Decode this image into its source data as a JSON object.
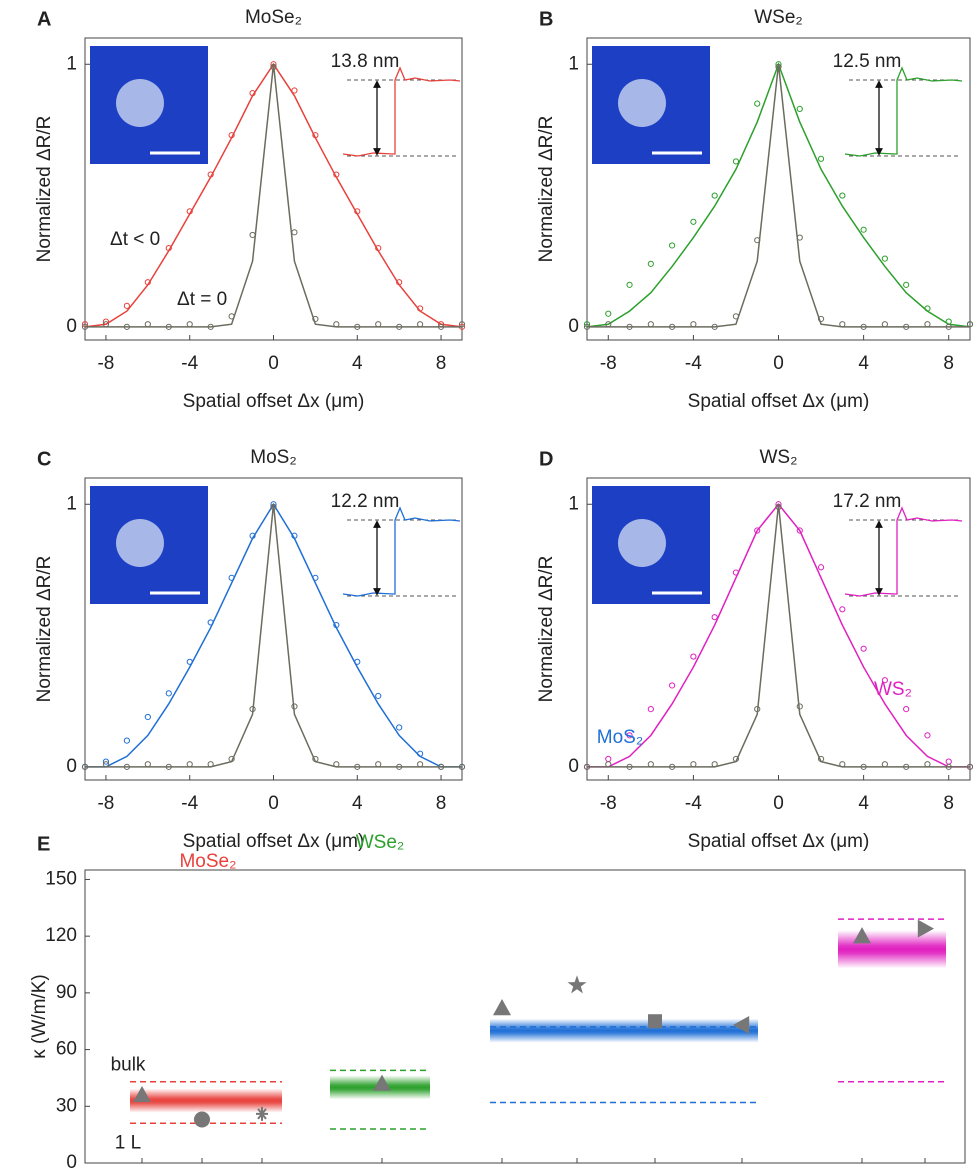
{
  "chart_data": [
    {
      "type": "profile",
      "panel": "A",
      "title": "MoSe₂",
      "xlabel": "Spatial offset Δx (μm)",
      "ylabel": "Normalized ΔR/R",
      "thickness": "13.8 nm",
      "annotations": [
        "Δt < 0",
        "Δt = 0"
      ],
      "xlim": [
        -9,
        9
      ],
      "ylim": [
        -0.05,
        1.1
      ],
      "xticks": [
        -8,
        -4,
        0,
        4,
        8
      ],
      "yticks": [
        0,
        1
      ],
      "x": [
        -9,
        -8,
        -7,
        -6,
        -5,
        -4,
        -3,
        -2,
        -1,
        0,
        1,
        2,
        3,
        4,
        5,
        6,
        7,
        8,
        9
      ],
      "series": [
        {
          "style": "markers",
          "color": "#e8413c",
          "values": [
            0.01,
            0.02,
            0.08,
            0.17,
            0.3,
            0.44,
            0.58,
            0.73,
            0.89,
            1,
            0.9,
            0.73,
            0.58,
            0.44,
            0.3,
            0.17,
            0.07,
            0.01,
            0
          ]
        },
        {
          "style": "line",
          "color": "#e8413c",
          "values": [
            0,
            0.01,
            0.06,
            0.16,
            0.29,
            0.43,
            0.57,
            0.72,
            0.88,
            1,
            0.88,
            0.72,
            0.57,
            0.43,
            0.29,
            0.16,
            0.06,
            0.01,
            0
          ]
        },
        {
          "style": "markers",
          "color": "#6b6b5e",
          "values": [
            0,
            0.01,
            0,
            0.01,
            0,
            0.01,
            0,
            0.04,
            0.35,
            0.99,
            0.36,
            0.03,
            0.01,
            0,
            0.01,
            0,
            0.01,
            0,
            0.01
          ]
        },
        {
          "style": "line",
          "color": "#6b6b5e",
          "values": [
            0,
            0,
            0,
            0,
            0,
            0,
            0,
            0.01,
            0.25,
            1,
            0.25,
            0.01,
            0,
            0,
            0,
            0,
            0,
            0,
            0
          ]
        }
      ]
    },
    {
      "type": "profile",
      "panel": "B",
      "title": "WSe₂",
      "xlabel": "Spatial offset Δx (μm)",
      "ylabel": "Normalized ΔR/R",
      "thickness": "12.5 nm",
      "xlim": [
        -9,
        9
      ],
      "ylim": [
        -0.05,
        1.1
      ],
      "xticks": [
        -8,
        -4,
        0,
        4,
        8
      ],
      "yticks": [
        0,
        1
      ],
      "x": [
        -9,
        -8,
        -7,
        -6,
        -5,
        -4,
        -3,
        -2,
        -1,
        0,
        1,
        2,
        3,
        4,
        5,
        6,
        7,
        8,
        9
      ],
      "series": [
        {
          "style": "markers",
          "color": "#2ca02c",
          "values": [
            0.01,
            0.05,
            0.16,
            0.24,
            0.31,
            0.4,
            0.5,
            0.63,
            0.85,
            1,
            0.83,
            0.64,
            0.5,
            0.37,
            0.26,
            0.16,
            0.07,
            0.02,
            0.01
          ]
        },
        {
          "style": "line",
          "color": "#2ca02c",
          "values": [
            0,
            0.01,
            0.06,
            0.13,
            0.23,
            0.34,
            0.46,
            0.6,
            0.78,
            1,
            0.78,
            0.6,
            0.46,
            0.34,
            0.23,
            0.13,
            0.06,
            0.01,
            0
          ]
        },
        {
          "style": "markers",
          "color": "#6b6b5e",
          "values": [
            0,
            0.01,
            0,
            0.01,
            0,
            0.01,
            0,
            0.04,
            0.33,
            0.99,
            0.34,
            0.03,
            0.01,
            0,
            0.01,
            0,
            0.01,
            0,
            0.01
          ]
        },
        {
          "style": "line",
          "color": "#6b6b5e",
          "values": [
            0,
            0,
            0,
            0,
            0,
            0,
            0,
            0.01,
            0.25,
            1,
            0.25,
            0.01,
            0,
            0,
            0,
            0,
            0,
            0,
            0
          ]
        }
      ]
    },
    {
      "type": "profile",
      "panel": "C",
      "title": "MoS₂",
      "xlabel": "Spatial offset Δx (μm)",
      "ylabel": "Normalized ΔR/R",
      "thickness": "12.2 nm",
      "xlim": [
        -9,
        9
      ],
      "ylim": [
        -0.05,
        1.1
      ],
      "xticks": [
        -8,
        -4,
        0,
        4,
        8
      ],
      "yticks": [
        0,
        1
      ],
      "x": [
        -9,
        -8,
        -7,
        -6,
        -5,
        -4,
        -3,
        -2,
        -1,
        0,
        1,
        2,
        3,
        4,
        5,
        6,
        7,
        8,
        9
      ],
      "series": [
        {
          "style": "markers",
          "color": "#1f6fd6",
          "values": [
            0,
            0.02,
            0.1,
            0.19,
            0.28,
            0.4,
            0.55,
            0.72,
            0.88,
            1,
            0.88,
            0.72,
            0.54,
            0.4,
            0.27,
            0.15,
            0.05,
            0,
            0
          ]
        },
        {
          "style": "line",
          "color": "#1f6fd6",
          "values": [
            0,
            0,
            0.04,
            0.12,
            0.24,
            0.38,
            0.53,
            0.7,
            0.87,
            1,
            0.87,
            0.7,
            0.53,
            0.38,
            0.24,
            0.12,
            0.04,
            0,
            0
          ]
        },
        {
          "style": "markers",
          "color": "#6b6b5e",
          "values": [
            0,
            0.01,
            0,
            0.01,
            0,
            0.01,
            0.01,
            0.03,
            0.22,
            0.99,
            0.23,
            0.03,
            0.01,
            0,
            0.01,
            0,
            0.01,
            0,
            0
          ]
        },
        {
          "style": "line",
          "color": "#6b6b5e",
          "values": [
            0,
            0,
            0,
            0,
            0,
            0,
            0,
            0.02,
            0.2,
            1,
            0.2,
            0.02,
            0,
            0,
            0,
            0,
            0,
            0,
            0
          ]
        }
      ]
    },
    {
      "type": "profile",
      "panel": "D",
      "title": "WS₂",
      "xlabel": "Spatial offset Δx (μm)",
      "ylabel": "Normalized ΔR/R",
      "thickness": "17.2 nm",
      "xlim": [
        -9,
        9
      ],
      "ylim": [
        -0.05,
        1.1
      ],
      "xticks": [
        -8,
        -4,
        0,
        4,
        8
      ],
      "yticks": [
        0,
        1
      ],
      "x": [
        -9,
        -8,
        -7,
        -6,
        -5,
        -4,
        -3,
        -2,
        -1,
        0,
        1,
        2,
        3,
        4,
        5,
        6,
        7,
        8,
        9
      ],
      "series": [
        {
          "style": "markers",
          "color": "#e020c0",
          "values": [
            0,
            0.03,
            0.12,
            0.22,
            0.31,
            0.42,
            0.57,
            0.74,
            0.9,
            1,
            0.9,
            0.76,
            0.6,
            0.45,
            0.33,
            0.22,
            0.12,
            0.02,
            0
          ]
        },
        {
          "style": "line",
          "color": "#e020c0",
          "values": [
            0,
            0,
            0.04,
            0.12,
            0.24,
            0.38,
            0.54,
            0.72,
            0.9,
            1,
            0.9,
            0.72,
            0.54,
            0.38,
            0.24,
            0.12,
            0.04,
            0,
            0
          ]
        },
        {
          "style": "markers",
          "color": "#6b6b5e",
          "values": [
            0,
            0.01,
            0,
            0.01,
            0,
            0.01,
            0.01,
            0.03,
            0.22,
            0.99,
            0.23,
            0.03,
            0.01,
            0,
            0.01,
            0,
            0.01,
            0,
            0
          ]
        },
        {
          "style": "line",
          "color": "#6b6b5e",
          "values": [
            0,
            0,
            0,
            0,
            0,
            0,
            0,
            0.02,
            0.2,
            1,
            0.2,
            0.02,
            0,
            0,
            0,
            0,
            0,
            0,
            0
          ]
        }
      ]
    },
    {
      "type": "range",
      "panel": "E",
      "ylabel": "κ (W/m/K)",
      "bulk_label": "bulk",
      "monolayer_label": "1 L",
      "ylim": [
        0,
        155
      ],
      "yticks": [
        0,
        30,
        60,
        90,
        120,
        150
      ],
      "groups": [
        {
          "name": "MoSe₂",
          "color": "#e8413c",
          "value": 33,
          "bulk": 43,
          "monolayer": 21,
          "points": [
            {
              "marker": "triangle",
              "value": 36
            },
            {
              "marker": "circle",
              "value": 23
            },
            {
              "marker": "asterisk",
              "value": 26
            }
          ]
        },
        {
          "name": "WSe₂",
          "color": "#2ca02c",
          "value": 40,
          "bulk": 49,
          "monolayer": 18,
          "points": [
            {
              "marker": "triangle",
              "value": 42
            }
          ]
        },
        {
          "name": "MoS₂",
          "color": "#1f6fd6",
          "value": 70,
          "bulk": 72,
          "monolayer": 32,
          "points": [
            {
              "marker": "triangle",
              "value": 82
            },
            {
              "marker": "star",
              "value": 94
            },
            {
              "marker": "square",
              "value": 75
            },
            {
              "marker": "triangle-left",
              "value": 73
            }
          ]
        },
        {
          "name": "WS₂",
          "color": "#e020c0",
          "value": 113,
          "bulk": 129,
          "monolayer": 43,
          "points": [
            {
              "marker": "triangle",
              "value": 120
            },
            {
              "marker": "triangle-right",
              "value": 124
            }
          ]
        }
      ]
    }
  ]
}
